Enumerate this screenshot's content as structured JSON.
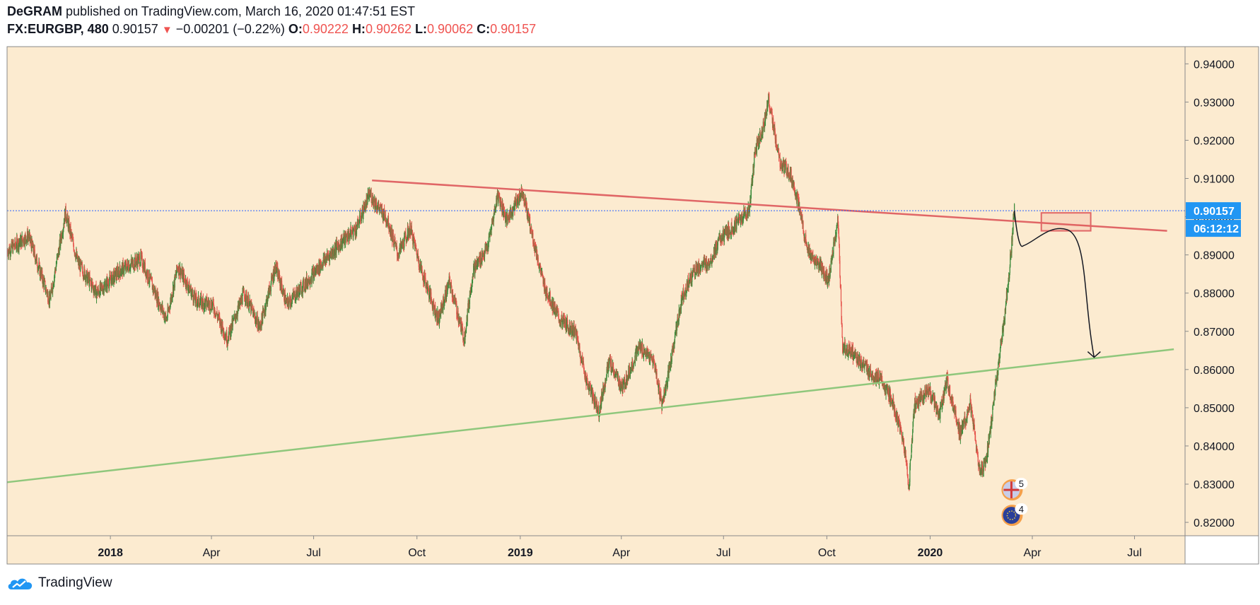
{
  "header": {
    "author": "DeGRAM",
    "published": "published on TradingView.com, March 16, 2020 01:47:51 EST",
    "symbol": "FX:EURGBP, 480",
    "last": "0.90157",
    "change": "−0.00201 (−0.22%)",
    "o_label": "O:",
    "o_value": "0.90222",
    "h_label": "H:",
    "h_value": "0.90262",
    "l_label": "L:",
    "l_value": "0.90062",
    "c_label": "C:",
    "c_value": "0.90157"
  },
  "footer": {
    "brand": "TradingView"
  },
  "colors": {
    "background": "#fcebd0",
    "up_candle": "#3a8a3a",
    "down_candle": "#e5534b",
    "resistance_line": "#e06666",
    "support_line": "#8fc77c",
    "price_line": "#2962ff",
    "price_label_bg": "#2196f3"
  },
  "chart_data": {
    "type": "candlestick",
    "symbol": "FX:EURGBP",
    "interval": "480",
    "x_range": [
      "2017-10-01",
      "2020-08-15"
    ],
    "ylim": [
      0.8165,
      0.9445
    ],
    "y_ticks": [
      "0.94000",
      "0.93000",
      "0.92000",
      "0.91000",
      "0.90000",
      "0.89000",
      "0.88000",
      "0.87000",
      "0.86000",
      "0.85000",
      "0.84000",
      "0.83000",
      "0.82000"
    ],
    "x_ticks": [
      {
        "label": "2018",
        "date": "2018-01-01",
        "bold": true
      },
      {
        "label": "Apr",
        "date": "2018-04-01",
        "bold": false
      },
      {
        "label": "Jul",
        "date": "2018-07-01",
        "bold": false
      },
      {
        "label": "Oct",
        "date": "2018-10-01",
        "bold": false
      },
      {
        "label": "2019",
        "date": "2019-01-01",
        "bold": true
      },
      {
        "label": "Apr",
        "date": "2019-04-01",
        "bold": false
      },
      {
        "label": "Jul",
        "date": "2019-07-01",
        "bold": false
      },
      {
        "label": "Oct",
        "date": "2019-10-01",
        "bold": false
      },
      {
        "label": "2020",
        "date": "2020-01-01",
        "bold": true
      },
      {
        "label": "Apr",
        "date": "2020-04-01",
        "bold": false
      },
      {
        "label": "Jul",
        "date": "2020-07-01",
        "bold": false
      }
    ],
    "price_path": [
      [
        "2017-10-01",
        0.891
      ],
      [
        "2017-10-20",
        0.895
      ],
      [
        "2017-11-08",
        0.878
      ],
      [
        "2017-11-22",
        0.901
      ],
      [
        "2017-12-03",
        0.888
      ],
      [
        "2017-12-20",
        0.88
      ],
      [
        "2018-01-10",
        0.886
      ],
      [
        "2018-01-28",
        0.889
      ],
      [
        "2018-02-20",
        0.873
      ],
      [
        "2018-03-02",
        0.887
      ],
      [
        "2018-03-18",
        0.878
      ],
      [
        "2018-04-02",
        0.877
      ],
      [
        "2018-04-15",
        0.868
      ],
      [
        "2018-04-30",
        0.88
      ],
      [
        "2018-05-14",
        0.871
      ],
      [
        "2018-05-28",
        0.887
      ],
      [
        "2018-06-07",
        0.877
      ],
      [
        "2018-06-25",
        0.883
      ],
      [
        "2018-07-12",
        0.889
      ],
      [
        "2018-07-28",
        0.894
      ],
      [
        "2018-08-08",
        0.897
      ],
      [
        "2018-08-20",
        0.906
      ],
      [
        "2018-08-24",
        0.904
      ],
      [
        "2018-09-05",
        0.899
      ],
      [
        "2018-09-14",
        0.89
      ],
      [
        "2018-09-25",
        0.897
      ],
      [
        "2018-10-05",
        0.886
      ],
      [
        "2018-10-20",
        0.873
      ],
      [
        "2018-10-30",
        0.883
      ],
      [
        "2018-11-12",
        0.868
      ],
      [
        "2018-11-20",
        0.886
      ],
      [
        "2018-12-03",
        0.892
      ],
      [
        "2018-12-12",
        0.906
      ],
      [
        "2018-12-20",
        0.899
      ],
      [
        "2019-01-03",
        0.907
      ],
      [
        "2019-01-11",
        0.896
      ],
      [
        "2019-01-22",
        0.882
      ],
      [
        "2019-02-05",
        0.873
      ],
      [
        "2019-02-19",
        0.87
      ],
      [
        "2019-03-01",
        0.857
      ],
      [
        "2019-03-12",
        0.849
      ],
      [
        "2019-03-21",
        0.862
      ],
      [
        "2019-04-02",
        0.855
      ],
      [
        "2019-04-17",
        0.866
      ],
      [
        "2019-04-30",
        0.862
      ],
      [
        "2019-05-07",
        0.851
      ],
      [
        "2019-05-12",
        0.857
      ],
      [
        "2019-05-25",
        0.879
      ],
      [
        "2019-06-05",
        0.886
      ],
      [
        "2019-06-18",
        0.888
      ],
      [
        "2019-06-28",
        0.894
      ],
      [
        "2019-07-12",
        0.898
      ],
      [
        "2019-07-24",
        0.902
      ],
      [
        "2019-07-29",
        0.917
      ],
      [
        "2019-08-06",
        0.924
      ],
      [
        "2019-08-10",
        0.931
      ],
      [
        "2019-08-20",
        0.914
      ],
      [
        "2019-08-30",
        0.911
      ],
      [
        "2019-09-05",
        0.904
      ],
      [
        "2019-09-15",
        0.89
      ],
      [
        "2019-09-25",
        0.887
      ],
      [
        "2019-10-02",
        0.883
      ],
      [
        "2019-10-11",
        0.899
      ],
      [
        "2019-10-15",
        0.866
      ],
      [
        "2019-10-25",
        0.864
      ],
      [
        "2019-11-05",
        0.86
      ],
      [
        "2019-11-18",
        0.857
      ],
      [
        "2019-11-28",
        0.852
      ],
      [
        "2019-12-09",
        0.84
      ],
      [
        "2019-12-13",
        0.829
      ],
      [
        "2019-12-18",
        0.851
      ],
      [
        "2019-12-31",
        0.855
      ],
      [
        "2020-01-09",
        0.848
      ],
      [
        "2020-01-16",
        0.857
      ],
      [
        "2020-01-28",
        0.843
      ],
      [
        "2020-02-06",
        0.851
      ],
      [
        "2020-02-14",
        0.833
      ],
      [
        "2020-02-20",
        0.836
      ],
      [
        "2020-02-28",
        0.855
      ],
      [
        "2020-03-06",
        0.871
      ],
      [
        "2020-03-11",
        0.884
      ],
      [
        "2020-03-16",
        0.9016
      ]
    ],
    "resistance_line": {
      "from": [
        "2018-08-22",
        0.9095
      ],
      "to": [
        "2020-07-30",
        0.8963
      ]
    },
    "support_line": {
      "from": [
        "2017-10-01",
        0.8305
      ],
      "to": [
        "2020-08-05",
        0.8653
      ]
    },
    "current_price": 0.90157,
    "current_price_label": "0.90157",
    "countdown": "06:12:12",
    "target_box": {
      "x": [
        "2020-04-09",
        "2020-05-23"
      ],
      "y": [
        0.8963,
        0.901
      ]
    },
    "projection_path": [
      [
        "2020-03-16",
        0.9016
      ],
      [
        "2020-03-24",
        0.8924
      ],
      [
        "2020-04-10",
        0.8935
      ],
      [
        "2020-05-02",
        0.8966
      ],
      [
        "2020-05-20",
        0.879
      ],
      [
        "2020-05-26",
        0.8632
      ]
    ],
    "events": [
      {
        "flag": "uk",
        "count": "5"
      },
      {
        "flag": "eu",
        "count": "4"
      }
    ]
  }
}
